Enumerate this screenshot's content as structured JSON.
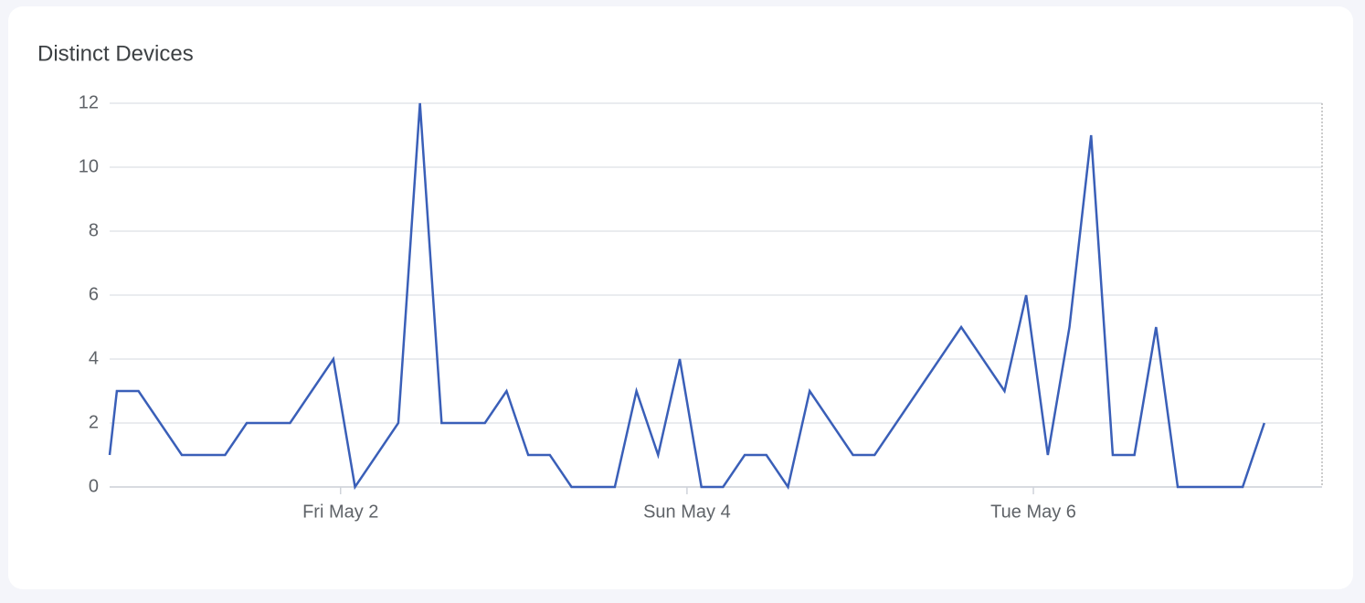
{
  "chart_data": {
    "type": "line",
    "title": "Distinct Devices",
    "x": [
      -32,
      -31,
      -28,
      -22,
      -16,
      -13,
      -7,
      -1,
      2,
      8,
      11,
      14,
      20,
      23,
      26,
      29,
      32,
      38,
      41,
      44,
      47,
      50,
      53,
      56,
      59,
      62,
      65,
      71,
      74,
      86,
      92,
      95,
      98,
      101,
      104,
      107,
      110,
      113,
      116,
      125,
      128
    ],
    "series": [
      {
        "name": "Distinct Devices",
        "color": "#3a5fb8",
        "values": [
          1,
          3,
          3,
          1,
          1,
          2,
          2,
          4,
          0,
          2,
          12,
          2,
          2,
          3,
          1,
          1,
          0,
          0,
          3,
          1,
          4,
          0,
          0,
          1,
          1,
          0,
          3,
          1,
          1,
          5,
          3,
          6,
          1,
          5,
          11,
          1,
          1,
          5,
          0,
          0,
          2
        ]
      }
    ],
    "xlim": [
      -32,
      136
    ],
    "xticks": [
      {
        "value": 0,
        "label": "Fri May 2"
      },
      {
        "value": 48,
        "label": "Sun May 4"
      },
      {
        "value": 96,
        "label": "Tue May 6"
      }
    ],
    "ylim": [
      0,
      12
    ],
    "yticks": [
      0,
      2,
      4,
      6,
      8,
      10,
      12
    ],
    "grid": true
  }
}
